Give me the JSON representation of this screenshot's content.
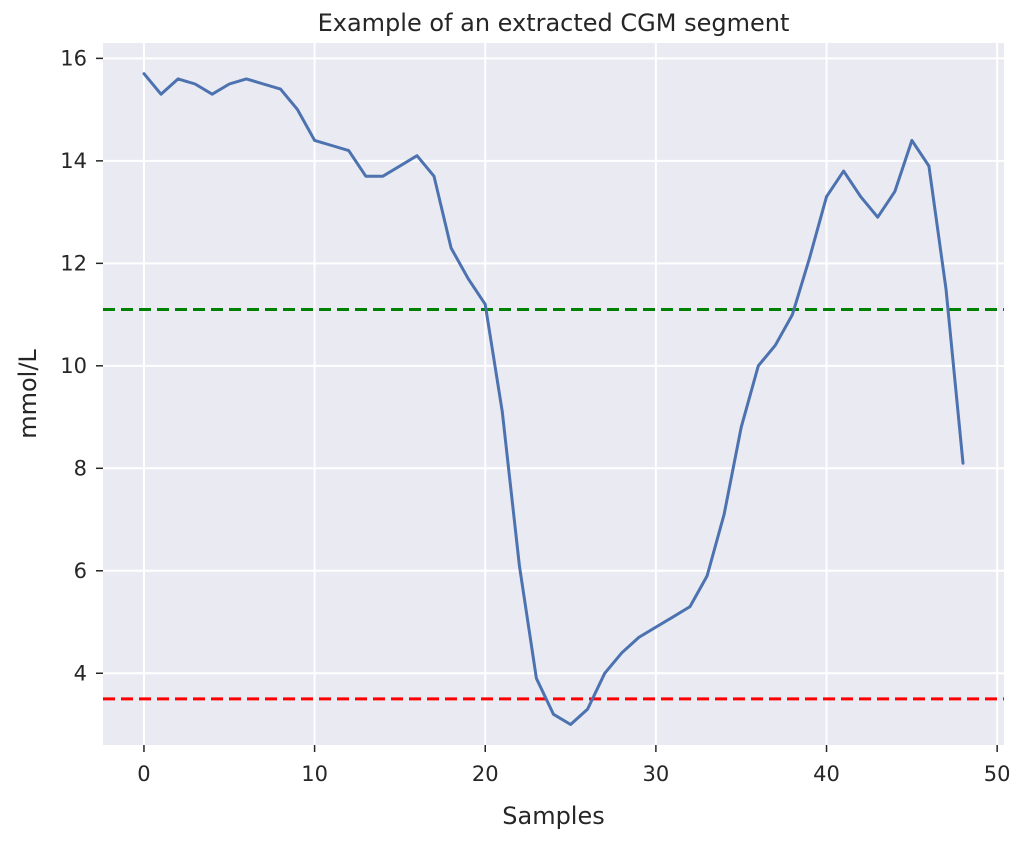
{
  "chart_data": {
    "type": "line",
    "title": "Example of an extracted CGM segment",
    "xlabel": "Samples",
    "ylabel": "mmol/L",
    "xlim": [
      -2.4,
      50.4
    ],
    "ylim": [
      2.6,
      16.3
    ],
    "xticks": [
      0,
      10,
      20,
      30,
      40,
      50
    ],
    "yticks": [
      4,
      6,
      8,
      10,
      12,
      14,
      16
    ],
    "grid": true,
    "colors": {
      "background": "#eaeaf2",
      "grid": "#ffffff",
      "series": "#4c72b0",
      "upper_threshold": "#008000",
      "lower_threshold": "#ff0000",
      "text": "#262626"
    },
    "series": [
      {
        "x": [
          0,
          1,
          2,
          3,
          4,
          5,
          6,
          7,
          8,
          9,
          10,
          11,
          12,
          13,
          14,
          15,
          16,
          17,
          18,
          19,
          20,
          21,
          22,
          23,
          24,
          25,
          26,
          27,
          28,
          29,
          30,
          31,
          32,
          33,
          34,
          35,
          36,
          37,
          38,
          39,
          40,
          41,
          42,
          43,
          44,
          45,
          46,
          47,
          48
        ],
        "values": [
          15.7,
          15.3,
          15.6,
          15.5,
          15.3,
          15.5,
          15.6,
          15.5,
          15.4,
          15.0,
          14.4,
          14.3,
          14.2,
          13.7,
          13.7,
          13.9,
          14.1,
          13.7,
          12.3,
          11.7,
          11.2,
          9.1,
          6.1,
          3.9,
          3.2,
          3.0,
          3.3,
          4.0,
          4.4,
          4.7,
          4.9,
          5.1,
          5.3,
          5.9,
          7.1,
          8.8,
          10.0,
          10.4,
          11.0,
          12.1,
          13.3,
          13.8,
          13.3,
          12.9,
          13.4,
          14.4,
          13.9,
          11.5,
          8.1
        ]
      }
    ],
    "reference_lines": [
      {
        "y": 11.1,
        "style": "dashed",
        "color": "#008000"
      },
      {
        "y": 3.5,
        "style": "dashed",
        "color": "#ff0000"
      }
    ]
  }
}
